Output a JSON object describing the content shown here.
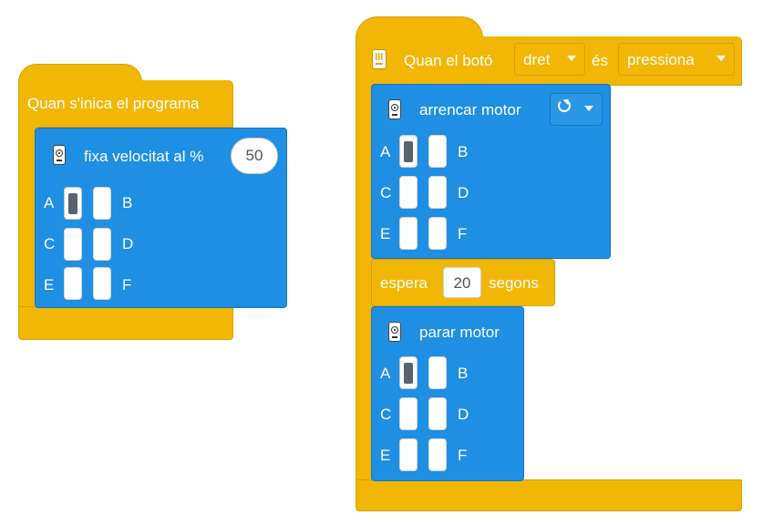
{
  "program_start": {
    "hat_label": "Quan s'inica el programa",
    "set_speed": {
      "label": "fixa velocitat al %",
      "value": "50",
      "ports": {
        "a": "A",
        "b": "B",
        "c": "C",
        "d": "D",
        "e": "E",
        "f": "F"
      },
      "selected_port": "A"
    }
  },
  "button_event": {
    "label_prefix": "Quan el botó",
    "button_option": "dret",
    "label_mid": "és",
    "state_option": "pressiona",
    "start_motor": {
      "label": "arrencar motor",
      "direction_icon": "clockwise-icon",
      "ports": {
        "a": "A",
        "b": "B",
        "c": "C",
        "d": "D",
        "e": "E",
        "f": "F"
      },
      "selected_port": "A"
    },
    "wait": {
      "label_prefix": "espera",
      "value": "20",
      "label_suffix": "segons"
    },
    "stop_motor": {
      "label": "parar motor",
      "ports": {
        "a": "A",
        "b": "B",
        "c": "C",
        "d": "D",
        "e": "E",
        "f": "F"
      },
      "selected_port": "A"
    }
  },
  "colors": {
    "event_yellow": "#f2b705",
    "motor_blue": "#1e8fe3",
    "selected_port": "#5a6270"
  }
}
